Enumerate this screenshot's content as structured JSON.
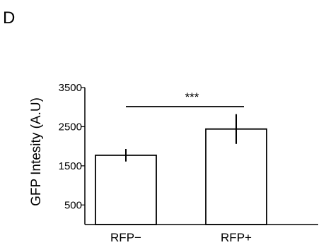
{
  "panel_label": "D",
  "chart_data": {
    "type": "bar",
    "title": "",
    "xlabel": "",
    "ylabel": "GFP Intesity (A.U)",
    "categories": [
      "RFP−",
      "RFP+"
    ],
    "values": [
      1770,
      2440
    ],
    "errors": [
      160,
      380
    ],
    "ylim": [
      0,
      3500
    ],
    "yticks": [
      500,
      1500,
      2500,
      3500
    ],
    "ytick_labels": [
      "500",
      "1500",
      "2500",
      "3500"
    ],
    "grid": false,
    "legend": "none",
    "significance": {
      "between": [
        0,
        1
      ],
      "label": "***"
    },
    "colors": {
      "bar_fill": "#ffffff",
      "stroke": "#000000"
    }
  }
}
